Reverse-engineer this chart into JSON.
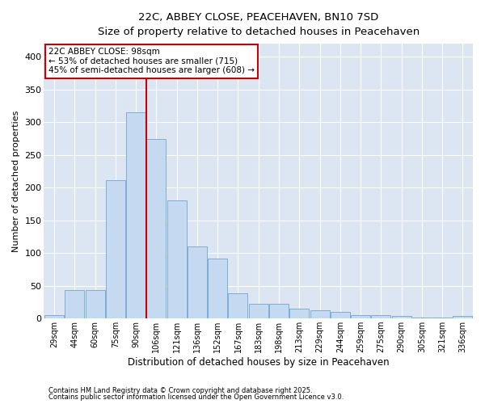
{
  "title1": "22C, ABBEY CLOSE, PEACEHAVEN, BN10 7SD",
  "title2": "Size of property relative to detached houses in Peacehaven",
  "xlabel": "Distribution of detached houses by size in Peacehaven",
  "ylabel": "Number of detached properties",
  "bins": [
    "29sqm",
    "44sqm",
    "60sqm",
    "75sqm",
    "90sqm",
    "106sqm",
    "121sqm",
    "136sqm",
    "152sqm",
    "167sqm",
    "183sqm",
    "198sqm",
    "213sqm",
    "229sqm",
    "244sqm",
    "259sqm",
    "275sqm",
    "290sqm",
    "305sqm",
    "321sqm",
    "336sqm"
  ],
  "values": [
    5,
    44,
    44,
    212,
    315,
    275,
    180,
    110,
    92,
    38,
    22,
    22,
    15,
    13,
    10,
    5,
    5,
    4,
    2,
    2,
    4
  ],
  "bar_color": "#c5d9f0",
  "bar_edge_color": "#7bafd4",
  "bg_color": "#dce6f3",
  "grid_color": "#ffffff",
  "vline_color": "#cc0000",
  "annotation_text": "22C ABBEY CLOSE: 98sqm\n← 53% of detached houses are smaller (715)\n45% of semi-detached houses are larger (608) →",
  "annotation_box_edge_color": "#cc0000",
  "footer1": "Contains HM Land Registry data © Crown copyright and database right 2025.",
  "footer2": "Contains public sector information licensed under the Open Government Licence v3.0.",
  "ylim": [
    0,
    420
  ],
  "yticks": [
    0,
    50,
    100,
    150,
    200,
    250,
    300,
    350,
    400
  ]
}
